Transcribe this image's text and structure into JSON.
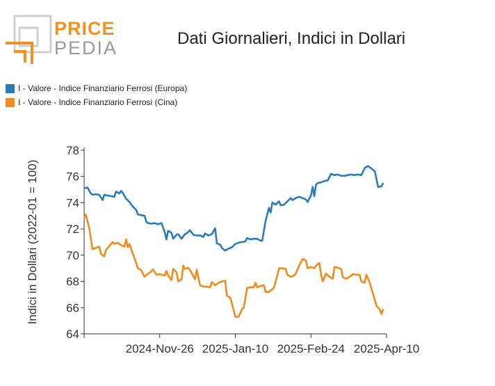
{
  "brand": {
    "price": "PRICE",
    "pedia": "PEDIA"
  },
  "colors": {
    "europa": "#2b7bb9",
    "cina": "#f28a1c",
    "logo_orange": "#f0921e",
    "logo_gray": "#9a9a9a"
  },
  "chart_data": {
    "type": "line",
    "title": "Dati Giornalieri, Indici in Dollari",
    "xlabel": "",
    "ylabel": "Indici in Dollari (2022-01 = 100)",
    "ylim": [
      64,
      78
    ],
    "yticks": [
      64,
      66,
      68,
      70,
      72,
      74,
      76,
      78
    ],
    "xticks": [
      "2024-Nov-26",
      "2025-Jan-10",
      "2025-Feb-24",
      "2025-Apr-10"
    ],
    "x_range": [
      "2024-Oct-12",
      "2025-Apr-10"
    ],
    "grid": false,
    "legend_position": "top-left",
    "series": [
      {
        "name": "I - Valore - Indice Finanziario Ferrosi (Europa)",
        "color": "#2b7bb9",
        "points": [
          [
            "2024-10-12",
            75.1
          ],
          [
            "2024-10-14",
            75.15
          ],
          [
            "2024-10-16",
            74.7
          ],
          [
            "2024-10-17",
            74.6
          ],
          [
            "2024-10-19",
            74.65
          ],
          [
            "2024-10-21",
            74.6
          ],
          [
            "2024-10-23",
            74.2
          ],
          [
            "2024-10-24",
            74.6
          ],
          [
            "2024-10-26",
            74.55
          ],
          [
            "2024-10-28",
            74.5
          ],
          [
            "2024-10-30",
            74.45
          ],
          [
            "2024-10-31",
            74.85
          ],
          [
            "2024-11-02",
            74.7
          ],
          [
            "2024-11-03",
            74.9
          ],
          [
            "2024-11-04",
            74.75
          ],
          [
            "2024-11-06",
            74.3
          ],
          [
            "2024-11-08",
            74.05
          ],
          [
            "2024-11-10",
            73.7
          ],
          [
            "2024-11-12",
            73.45
          ],
          [
            "2024-11-13",
            73.1
          ],
          [
            "2024-11-15",
            73.05
          ],
          [
            "2024-11-17",
            73.0
          ],
          [
            "2024-11-18",
            72.55
          ],
          [
            "2024-11-19",
            72.45
          ],
          [
            "2024-11-21",
            72.4
          ],
          [
            "2024-11-23",
            72.45
          ],
          [
            "2024-11-25",
            72.35
          ],
          [
            "2024-11-27",
            72.45
          ],
          [
            "2024-11-29",
            71.75
          ],
          [
            "2024-11-30",
            71.2
          ],
          [
            "2024-12-01",
            71.85
          ],
          [
            "2024-12-03",
            71.7
          ],
          [
            "2024-12-04",
            71.25
          ],
          [
            "2024-12-06",
            71.55
          ],
          [
            "2024-12-07",
            71.6
          ],
          [
            "2024-12-09",
            71.25
          ],
          [
            "2024-12-11",
            71.6
          ],
          [
            "2024-12-12",
            71.65
          ],
          [
            "2024-12-14",
            71.9
          ],
          [
            "2024-12-16",
            71.55
          ],
          [
            "2024-12-18",
            71.5
          ],
          [
            "2024-12-20",
            71.5
          ],
          [
            "2024-12-22",
            71.4
          ],
          [
            "2024-12-23",
            71.65
          ],
          [
            "2024-12-25",
            71.5
          ],
          [
            "2024-12-27",
            71.6
          ],
          [
            "2024-12-29",
            72.05
          ],
          [
            "2024-12-30",
            70.9
          ],
          [
            "2025-01-01",
            70.8
          ],
          [
            "2025-01-02",
            70.55
          ],
          [
            "2025-01-04",
            70.35
          ],
          [
            "2025-01-06",
            70.5
          ],
          [
            "2025-01-08",
            70.6
          ],
          [
            "2025-01-10",
            70.85
          ],
          [
            "2025-01-12",
            70.95
          ],
          [
            "2025-01-14",
            71.0
          ],
          [
            "2025-01-16",
            71.05
          ],
          [
            "2025-01-17",
            71.3
          ],
          [
            "2025-01-19",
            71.2
          ],
          [
            "2025-01-21",
            71.25
          ],
          [
            "2025-01-23",
            71.25
          ],
          [
            "2025-01-25",
            71.1
          ],
          [
            "2025-01-26",
            71.1
          ],
          [
            "2025-01-28",
            72.6
          ],
          [
            "2025-01-30",
            73.6
          ],
          [
            "2025-01-31",
            73.25
          ],
          [
            "2025-02-01",
            74.0
          ],
          [
            "2025-02-03",
            73.85
          ],
          [
            "2025-02-05",
            74.1
          ],
          [
            "2025-02-06",
            73.8
          ],
          [
            "2025-02-08",
            73.85
          ],
          [
            "2025-02-10",
            74.1
          ],
          [
            "2025-02-12",
            74.35
          ],
          [
            "2025-02-13",
            74.2
          ],
          [
            "2025-02-15",
            74.35
          ],
          [
            "2025-02-17",
            74.45
          ],
          [
            "2025-02-19",
            74.35
          ],
          [
            "2025-02-21",
            74.25
          ],
          [
            "2025-02-22",
            74.05
          ],
          [
            "2025-02-24",
            74.55
          ],
          [
            "2025-02-25",
            75.2
          ],
          [
            "2025-02-26",
            74.5
          ],
          [
            "2025-02-27",
            75.35
          ],
          [
            "2025-02-28",
            75.5
          ],
          [
            "2025-03-02",
            75.55
          ],
          [
            "2025-03-04",
            75.65
          ],
          [
            "2025-03-06",
            75.7
          ],
          [
            "2025-03-08",
            76.2
          ],
          [
            "2025-03-10",
            76.1
          ],
          [
            "2025-03-12",
            76.15
          ],
          [
            "2025-03-14",
            76.05
          ],
          [
            "2025-03-16",
            76.05
          ],
          [
            "2025-03-18",
            76.1
          ],
          [
            "2025-03-20",
            76.15
          ],
          [
            "2025-03-22",
            76.1
          ],
          [
            "2025-03-24",
            76.15
          ],
          [
            "2025-03-26",
            76.1
          ],
          [
            "2025-03-28",
            76.65
          ],
          [
            "2025-03-30",
            76.8
          ],
          [
            "2025-04-01",
            76.6
          ],
          [
            "2025-04-03",
            76.4
          ],
          [
            "2025-04-05",
            75.2
          ],
          [
            "2025-04-07",
            75.25
          ],
          [
            "2025-04-08",
            75.5
          ]
        ]
      },
      {
        "name": "I - Valore - Indice Finanziario Ferrosi (Cina)",
        "color": "#f28a1c",
        "points": [
          [
            "2024-10-12",
            72.8
          ],
          [
            "2024-10-13",
            73.1
          ],
          [
            "2024-10-15",
            72.1
          ],
          [
            "2024-10-17",
            70.45
          ],
          [
            "2024-10-19",
            70.55
          ],
          [
            "2024-10-21",
            70.65
          ],
          [
            "2024-10-22",
            70.1
          ],
          [
            "2024-10-24",
            69.9
          ],
          [
            "2024-10-25",
            70.4
          ],
          [
            "2024-10-27",
            70.7
          ],
          [
            "2024-10-29",
            71.0
          ],
          [
            "2024-10-30",
            70.85
          ],
          [
            "2024-11-01",
            70.95
          ],
          [
            "2024-11-03",
            70.75
          ],
          [
            "2024-11-05",
            70.65
          ],
          [
            "2024-11-06",
            71.2
          ],
          [
            "2024-11-07",
            70.6
          ],
          [
            "2024-11-08",
            70.85
          ],
          [
            "2024-11-10",
            70.1
          ],
          [
            "2024-11-12",
            69.4
          ],
          [
            "2024-11-13",
            69.0
          ],
          [
            "2024-11-15",
            68.85
          ],
          [
            "2024-11-17",
            68.35
          ],
          [
            "2024-11-19",
            68.6
          ],
          [
            "2024-11-20",
            68.65
          ],
          [
            "2024-11-22",
            68.9
          ],
          [
            "2024-11-24",
            68.5
          ],
          [
            "2024-11-26",
            68.55
          ],
          [
            "2024-11-27",
            68.5
          ],
          [
            "2024-11-29",
            68.45
          ],
          [
            "2024-11-30",
            68.8
          ],
          [
            "2024-12-01",
            68.45
          ],
          [
            "2024-12-03",
            68.1
          ],
          [
            "2024-12-04",
            68.95
          ],
          [
            "2024-12-06",
            68.7
          ],
          [
            "2024-12-07",
            68.0
          ],
          [
            "2024-12-09",
            68.15
          ],
          [
            "2024-12-10",
            69.2
          ],
          [
            "2024-12-11",
            68.95
          ],
          [
            "2024-12-13",
            69.05
          ],
          [
            "2024-12-15",
            68.65
          ],
          [
            "2024-12-17",
            68.15
          ],
          [
            "2024-12-18",
            68.9
          ],
          [
            "2024-12-20",
            67.7
          ],
          [
            "2024-12-22",
            67.6
          ],
          [
            "2024-12-24",
            67.6
          ],
          [
            "2024-12-26",
            67.55
          ],
          [
            "2024-12-27",
            67.95
          ],
          [
            "2024-12-29",
            67.7
          ],
          [
            "2024-12-31",
            67.9
          ],
          [
            "2025-01-02",
            68.0
          ],
          [
            "2025-01-04",
            68.05
          ],
          [
            "2025-01-05",
            66.9
          ],
          [
            "2025-01-07",
            66.75
          ],
          [
            "2025-01-09",
            65.8
          ],
          [
            "2025-01-10",
            65.3
          ],
          [
            "2025-01-12",
            65.3
          ],
          [
            "2025-01-14",
            65.9
          ],
          [
            "2025-01-15",
            66.0
          ],
          [
            "2025-01-17",
            67.5
          ],
          [
            "2025-01-19",
            67.55
          ],
          [
            "2025-01-21",
            67.55
          ],
          [
            "2025-01-22",
            67.9
          ],
          [
            "2025-01-23",
            67.55
          ],
          [
            "2025-01-25",
            67.65
          ],
          [
            "2025-01-27",
            67.7
          ],
          [
            "2025-01-28",
            67.2
          ],
          [
            "2025-01-30",
            67.2
          ],
          [
            "2025-02-01",
            67.4
          ],
          [
            "2025-02-02",
            67.55
          ],
          [
            "2025-02-04",
            68.45
          ],
          [
            "2025-02-05",
            69.0
          ],
          [
            "2025-02-07",
            69.0
          ],
          [
            "2025-02-09",
            68.95
          ],
          [
            "2025-02-10",
            68.5
          ],
          [
            "2025-02-12",
            68.35
          ],
          [
            "2025-02-14",
            68.45
          ],
          [
            "2025-02-15",
            68.6
          ],
          [
            "2025-02-17",
            69.2
          ],
          [
            "2025-02-19",
            69.7
          ],
          [
            "2025-02-21",
            69.6
          ],
          [
            "2025-02-22",
            69.0
          ],
          [
            "2025-02-24",
            69.1
          ],
          [
            "2025-02-26",
            69.0
          ],
          [
            "2025-02-27",
            69.2
          ],
          [
            "2025-03-01",
            69.4
          ],
          [
            "2025-03-02",
            68.55
          ],
          [
            "2025-03-03",
            68.0
          ],
          [
            "2025-03-05",
            68.6
          ],
          [
            "2025-03-07",
            68.35
          ],
          [
            "2025-03-09",
            68.2
          ],
          [
            "2025-03-10",
            69.1
          ],
          [
            "2025-03-12",
            69.05
          ],
          [
            "2025-03-14",
            68.95
          ],
          [
            "2025-03-15",
            68.3
          ],
          [
            "2025-03-17",
            68.2
          ],
          [
            "2025-03-19",
            68.35
          ],
          [
            "2025-03-21",
            68.55
          ],
          [
            "2025-03-23",
            68.5
          ],
          [
            "2025-03-25",
            68.5
          ],
          [
            "2025-03-26",
            68.0
          ],
          [
            "2025-03-28",
            67.9
          ],
          [
            "2025-03-29",
            68.5
          ],
          [
            "2025-03-31",
            67.9
          ],
          [
            "2025-04-02",
            67.0
          ],
          [
            "2025-04-04",
            66.15
          ],
          [
            "2025-04-06",
            65.85
          ],
          [
            "2025-04-07",
            65.5
          ],
          [
            "2025-04-08",
            65.9
          ]
        ]
      }
    ]
  }
}
